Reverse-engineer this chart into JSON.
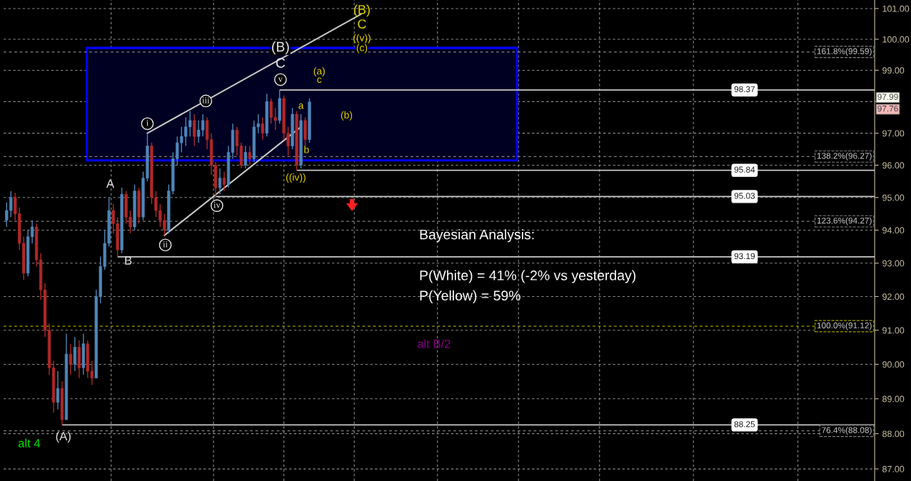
{
  "chart_data": {
    "type": "candlestick",
    "log": "y",
    "grid": true,
    "legend": false,
    "tick_labels": "y",
    "ylim": [
      86.66,
      101.28
    ],
    "yticks": [
      {
        "value": 87,
        "label": "87.00"
      },
      {
        "value": 88,
        "label": "88.00"
      },
      {
        "value": 89,
        "label": "89.00"
      },
      {
        "value": 90,
        "label": "90.00"
      },
      {
        "value": 91,
        "label": "91.00"
      },
      {
        "value": 92,
        "label": "92.00"
      },
      {
        "value": 93,
        "label": "93.00"
      },
      {
        "value": 94,
        "label": "94.00"
      },
      {
        "value": 95,
        "label": "95.00"
      },
      {
        "value": 96,
        "label": "96.00"
      },
      {
        "value": 97,
        "label": "97.00"
      },
      {
        "value": 98,
        "label": null
      },
      {
        "value": 99,
        "label": "99.00"
      },
      {
        "value": 100,
        "label": "100.00"
      },
      {
        "value": 101,
        "label": "101.00"
      }
    ],
    "categories": [
      null,
      null,
      null,
      null,
      null,
      null,
      null,
      null,
      null,
      null,
      null,
      null,
      null,
      null,
      null,
      null,
      null,
      null,
      null,
      null,
      null,
      null,
      null,
      null,
      null,
      null,
      null,
      null,
      null,
      null,
      null,
      null,
      null,
      null,
      null,
      null,
      null,
      null,
      null,
      null,
      null,
      null,
      null,
      null,
      null,
      null,
      null,
      null,
      null,
      null,
      null,
      null,
      null,
      null,
      null,
      null,
      null,
      null,
      null,
      null,
      null,
      null,
      null,
      null,
      null,
      null,
      null,
      null,
      null,
      null,
      null,
      null,
      null,
      null,
      null,
      null,
      null,
      null,
      null,
      null,
      null,
      null,
      null,
      null,
      null,
      null,
      null,
      null,
      null,
      null,
      null,
      null,
      null,
      null,
      null,
      null,
      null,
      null,
      null,
      null,
      null,
      null,
      null,
      null,
      null,
      null,
      null,
      null,
      null,
      null,
      null,
      null,
      null,
      null,
      null,
      null,
      null,
      null,
      null,
      null,
      null,
      null,
      null,
      null,
      null,
      null,
      null,
      null,
      null,
      null,
      null,
      null,
      null,
      null,
      null,
      null,
      null,
      null,
      null,
      null,
      null,
      null,
      null,
      null,
      null,
      null,
      null,
      null,
      null,
      null,
      null,
      null,
      null,
      null,
      null,
      null,
      null,
      null,
      null,
      null,
      null,
      null,
      null,
      null,
      null,
      null,
      null,
      null,
      null,
      null,
      null,
      null,
      null,
      null,
      null,
      null,
      null,
      null,
      null,
      null,
      null,
      null,
      null,
      null,
      null,
      null,
      null,
      null,
      null,
      null,
      null,
      null,
      null,
      null,
      null,
      null,
      null,
      null,
      null,
      null,
      null,
      null,
      null,
      null
    ],
    "ohlc": [
      [
        94.3,
        94.85,
        94.1,
        94.6
      ],
      [
        94.6,
        95.2,
        94.4,
        95.0
      ],
      [
        95.0,
        95.15,
        94.3,
        94.5
      ],
      [
        94.5,
        94.7,
        93.4,
        93.6
      ],
      [
        93.6,
        93.8,
        92.5,
        92.7
      ],
      [
        92.7,
        94.0,
        92.6,
        93.8
      ],
      [
        93.8,
        94.3,
        93.6,
        94.1
      ],
      [
        94.1,
        94.2,
        92.9,
        93.1
      ],
      [
        93.1,
        93.3,
        91.9,
        92.2
      ],
      [
        92.2,
        92.4,
        90.8,
        91.0
      ],
      [
        91.0,
        91.2,
        89.7,
        89.9
      ],
      [
        89.9,
        90.1,
        88.6,
        88.9
      ],
      [
        88.9,
        89.8,
        88.7,
        89.3
      ],
      [
        89.3,
        89.5,
        88.25,
        88.4
      ],
      [
        88.4,
        90.9,
        88.4,
        90.3
      ],
      [
        90.3,
        90.6,
        89.7,
        90.0
      ],
      [
        90.0,
        90.8,
        89.8,
        90.5
      ],
      [
        90.5,
        90.7,
        89.6,
        89.9
      ],
      [
        89.9,
        90.9,
        89.7,
        90.6
      ],
      [
        90.6,
        90.7,
        89.6,
        89.8
      ],
      [
        89.8,
        90.1,
        89.4,
        89.6
      ],
      [
        89.6,
        92.2,
        89.6,
        92.0
      ],
      [
        92.0,
        93.2,
        91.8,
        92.9
      ],
      [
        92.9,
        94.0,
        92.8,
        93.6
      ],
      [
        93.6,
        95.0,
        93.5,
        94.6
      ],
      [
        94.6,
        94.8,
        93.9,
        94.2
      ],
      [
        94.2,
        94.4,
        93.19,
        93.4
      ],
      [
        93.4,
        95.3,
        93.3,
        95.1
      ],
      [
        95.1,
        95.2,
        94.2,
        94.4
      ],
      [
        94.4,
        94.6,
        93.9,
        94.1
      ],
      [
        94.1,
        95.4,
        94.0,
        95.2
      ],
      [
        95.2,
        95.3,
        94.2,
        94.4
      ],
      [
        94.4,
        95.8,
        94.3,
        95.6
      ],
      [
        95.6,
        97.0,
        95.5,
        96.6
      ],
      [
        96.6,
        96.7,
        94.8,
        95.0
      ],
      [
        95.0,
        95.2,
        94.4,
        94.6
      ],
      [
        94.6,
        94.8,
        94.1,
        94.3
      ],
      [
        94.3,
        94.5,
        93.84,
        94.0
      ],
      [
        94.0,
        95.4,
        93.9,
        95.2
      ],
      [
        95.2,
        96.4,
        95.1,
        96.2
      ],
      [
        96.2,
        96.9,
        96.0,
        96.7
      ],
      [
        96.7,
        97.2,
        96.4,
        96.9
      ],
      [
        96.9,
        97.5,
        96.6,
        97.2
      ],
      [
        97.2,
        97.7,
        96.9,
        97.4
      ],
      [
        97.4,
        97.6,
        96.6,
        96.9
      ],
      [
        96.9,
        97.4,
        96.7,
        97.1
      ],
      [
        97.1,
        97.6,
        96.9,
        97.4
      ],
      [
        97.4,
        97.5,
        96.5,
        96.8
      ],
      [
        96.8,
        97.0,
        95.7,
        96.0
      ],
      [
        96.0,
        96.1,
        95.03,
        95.3
      ],
      [
        95.3,
        95.9,
        95.1,
        95.6
      ],
      [
        95.6,
        95.8,
        95.2,
        95.4
      ],
      [
        95.4,
        96.6,
        95.3,
        96.4
      ],
      [
        96.4,
        97.3,
        96.2,
        97.1
      ],
      [
        97.1,
        97.2,
        96.3,
        96.6
      ],
      [
        96.6,
        96.7,
        95.9,
        96.0
      ],
      [
        96.0,
        96.6,
        95.9,
        96.4
      ],
      [
        96.4,
        96.6,
        96.0,
        96.2
      ],
      [
        96.2,
        97.4,
        96.1,
        97.2
      ],
      [
        97.2,
        97.6,
        97.0,
        97.3
      ],
      [
        97.3,
        97.5,
        96.8,
        97.0
      ],
      [
        97.0,
        98.25,
        96.9,
        98.0
      ],
      [
        98.0,
        98.1,
        97.3,
        97.5
      ],
      [
        97.5,
        97.8,
        97.1,
        97.4
      ],
      [
        97.4,
        98.37,
        97.3,
        98.1
      ],
      [
        98.1,
        98.2,
        96.8,
        97.0
      ],
      [
        97.0,
        97.2,
        96.3,
        96.6
      ],
      [
        96.6,
        97.8,
        96.5,
        97.6
      ],
      [
        97.6,
        97.7,
        95.84,
        96.0
      ],
      [
        96.0,
        97.6,
        95.9,
        97.4
      ],
      [
        97.4,
        97.5,
        96.6,
        96.8
      ],
      [
        96.8,
        98.1,
        96.7,
        97.99
      ],
      null,
      null,
      null,
      null,
      null,
      null,
      null,
      null,
      null,
      null,
      null,
      null,
      null,
      null,
      null,
      null,
      null,
      null,
      null,
      null,
      null,
      null,
      null,
      null,
      null,
      null,
      null,
      null,
      null,
      null,
      null,
      null,
      null,
      null,
      null,
      null,
      null,
      null,
      null,
      null,
      null,
      null,
      null,
      null,
      null,
      null,
      null,
      null,
      null,
      null,
      null,
      null,
      null,
      null,
      null,
      null,
      null,
      null,
      null,
      null,
      null,
      null,
      null,
      null,
      null,
      null,
      null,
      null,
      null,
      null,
      null,
      null,
      null,
      null,
      null,
      null,
      null,
      null,
      null,
      null,
      null,
      null,
      null,
      null,
      null,
      null,
      null,
      null,
      null,
      null,
      null,
      null,
      null,
      null,
      null,
      null,
      null,
      null,
      null,
      null,
      null,
      null,
      null,
      null,
      null,
      null,
      null,
      null,
      null,
      null,
      null,
      null,
      null,
      null,
      null,
      null,
      null,
      null,
      null,
      null,
      null,
      null,
      null,
      null,
      null,
      null,
      null,
      null,
      null,
      null,
      null,
      null
    ],
    "series": [
      {
        "type": "line",
        "color": "#c8c8c8",
        "values": [
          null,
          null,
          null,
          null,
          null,
          null,
          null,
          null,
          null,
          null,
          null,
          null,
          null,
          null,
          null,
          null,
          null,
          null,
          null,
          null,
          null,
          null,
          null,
          null,
          null,
          null,
          null,
          null,
          null,
          null,
          null,
          null,
          null,
          97.0,
          null,
          null,
          null,
          null,
          null,
          null,
          null,
          null,
          null,
          null,
          null,
          null,
          null,
          null,
          null,
          null,
          null,
          null,
          null,
          null,
          null,
          null,
          null,
          null,
          null,
          null,
          null,
          null,
          null,
          null,
          null,
          null,
          null,
          null,
          null,
          null,
          null,
          null,
          null,
          null,
          null,
          null,
          null,
          null,
          null,
          null,
          null,
          null,
          null,
          100.81,
          null,
          null,
          null,
          null,
          null,
          null,
          null,
          null,
          null,
          null,
          null,
          null,
          null,
          null,
          null,
          null,
          null,
          null,
          null,
          null,
          null,
          null,
          null,
          null,
          null,
          null,
          null,
          null,
          null,
          null,
          null,
          null,
          null,
          null,
          null,
          null,
          null,
          null,
          null,
          null,
          null,
          null,
          null,
          null,
          null,
          null,
          null,
          null,
          null,
          null,
          null,
          null,
          null,
          null,
          null,
          null,
          null,
          null,
          null,
          null,
          null,
          null,
          null,
          null,
          null,
          null,
          null,
          null,
          null,
          null,
          null,
          null,
          null,
          null,
          null,
          null,
          null,
          null,
          null,
          null,
          null,
          null,
          null,
          null,
          null,
          null,
          null,
          null,
          null,
          null,
          null,
          null,
          null,
          null,
          null,
          null,
          null,
          null,
          null,
          null,
          null,
          null,
          null,
          null,
          null,
          null,
          null,
          null,
          null,
          null,
          null,
          null,
          null,
          null,
          null,
          null,
          null,
          null,
          null,
          null
        ]
      },
      {
        "type": "line",
        "color": "#c8c8c8",
        "values": [
          null,
          null,
          null,
          null,
          null,
          null,
          null,
          null,
          null,
          null,
          null,
          null,
          null,
          null,
          null,
          null,
          null,
          null,
          null,
          null,
          null,
          null,
          null,
          null,
          null,
          null,
          null,
          null,
          null,
          null,
          null,
          null,
          null,
          null,
          null,
          null,
          null,
          93.84,
          null,
          null,
          null,
          null,
          null,
          null,
          null,
          null,
          null,
          null,
          null,
          null,
          null,
          null,
          null,
          null,
          null,
          null,
          null,
          null,
          null,
          null,
          null,
          null,
          null,
          null,
          null,
          null,
          null,
          null,
          null,
          97.2,
          null,
          null,
          null,
          null,
          null,
          null,
          null,
          null,
          null,
          null,
          null,
          null,
          null,
          null,
          null,
          null,
          null,
          null,
          null,
          null,
          null,
          null,
          null,
          null,
          null,
          null,
          null,
          null,
          null,
          null,
          null,
          null,
          null,
          null,
          null,
          null,
          null,
          null,
          null,
          null,
          null,
          null,
          null,
          null,
          null,
          null,
          null,
          null,
          null,
          null,
          null,
          null,
          null,
          null,
          null,
          null,
          null,
          null,
          null,
          null,
          null,
          null,
          null,
          null,
          null,
          null,
          null,
          null,
          null,
          null,
          null,
          null,
          null,
          null,
          null,
          null,
          null,
          null,
          null,
          null,
          null,
          null,
          null,
          null,
          null,
          null,
          null,
          null,
          null,
          null,
          null,
          null,
          null,
          null,
          null,
          null,
          null,
          null,
          null,
          null,
          null,
          null,
          null,
          null,
          null,
          null,
          null,
          null,
          null,
          null,
          null,
          null,
          null,
          null,
          null,
          null,
          null,
          null,
          null,
          null,
          null,
          null,
          null,
          null,
          null,
          null,
          null,
          null,
          null,
          null,
          null,
          null,
          null,
          null
        ]
      }
    ],
    "bands": [
      {
        "axis": "y",
        "from": 96.15,
        "to": 99.72,
        "color": "#0000ff"
      }
    ],
    "ref_lines": [
      {
        "axis": "y",
        "value": 98.37,
        "label": "98.37",
        "color": "#c8c8c8",
        "line_style": "solid"
      },
      {
        "axis": "y",
        "value": 95.84,
        "label": "95.84",
        "color": "#c8c8c8",
        "line_style": "solid"
      },
      {
        "axis": "y",
        "value": 95.03,
        "label": "95.03",
        "color": "#c8c8c8",
        "line_style": "solid"
      },
      {
        "axis": "y",
        "value": 93.19,
        "label": "93.19",
        "color": "#c8c8c8",
        "line_style": "solid"
      },
      {
        "axis": "y",
        "value": 88.25,
        "label": "88.25",
        "color": "#c8c8c8",
        "line_style": "solid"
      },
      {
        "axis": "y",
        "value": 99.59,
        "label": "161.8%(99.59)",
        "color": "#808080",
        "line_style": "dashed"
      },
      {
        "axis": "y",
        "value": 96.27,
        "label": "138.2%(96.27)",
        "color": "#808080",
        "line_style": "dashed"
      },
      {
        "axis": "y",
        "value": 94.27,
        "label": "123.6%(94.27)",
        "color": "#808080",
        "line_style": "dashed"
      },
      {
        "axis": "y",
        "value": 91.12,
        "label": "100.0%(91.12)",
        "color": "#a0a000",
        "line_style": "dashed"
      },
      {
        "axis": "y",
        "value": 88.08,
        "label": "76.4%(88.08)",
        "color": "#808080",
        "line_style": "dashed"
      }
    ],
    "annotations": [
      "Bayesian Analysis:",
      "P(White) = 41% (-2% vs yesterday)",
      "P(Yellow) = 59%",
      "97.99",
      "97.76",
      "(A)",
      "alt 4",
      "A",
      "B",
      "i",
      "ii",
      "iii",
      "iv",
      "v",
      "(B)",
      "C",
      "(B)",
      "C",
      "((v))",
      "(c)",
      "(a)",
      "c",
      "a",
      "b",
      "(b)",
      "((iv))",
      "alt B/2"
    ]
  }
}
